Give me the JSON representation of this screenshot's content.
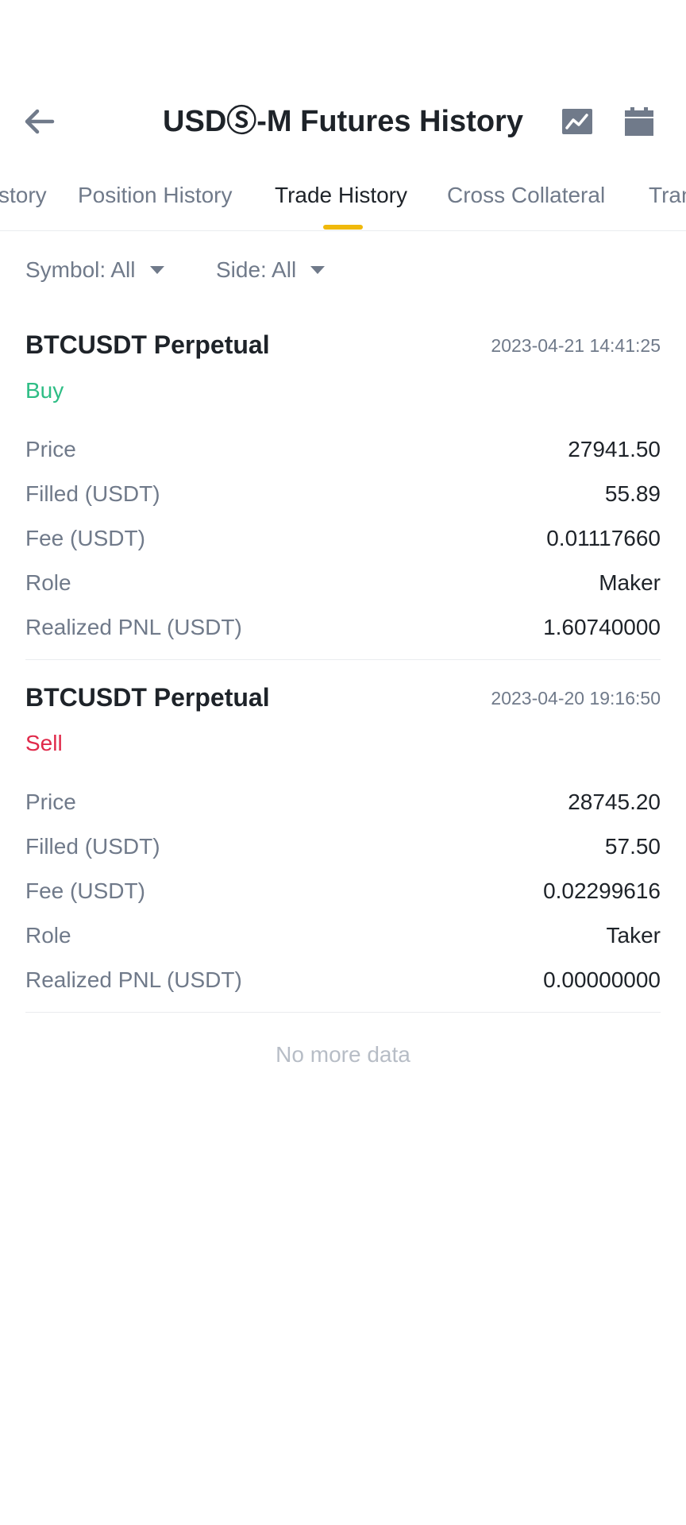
{
  "header": {
    "title": "USDⓈ-M Futures History",
    "back_icon": "arrow-left-icon",
    "chart_icon": "chart-icon",
    "calendar_icon": "calendar-icon"
  },
  "tabs": [
    {
      "label": "story"
    },
    {
      "label": "Position History"
    },
    {
      "label": "Trade History",
      "active": true
    },
    {
      "label": "Cross Collateral"
    },
    {
      "label": "Tran"
    }
  ],
  "filters": {
    "symbol": "Symbol: All",
    "side": "Side: All"
  },
  "colors": {
    "accent": "#f0b90b",
    "buy": "#2ebd85",
    "sell": "#e0294a",
    "text": "#1e2329",
    "muted": "#707a8a"
  },
  "trades": [
    {
      "symbol": "BTCUSDT Perpetual",
      "time": "2023-04-21 14:41:25",
      "side": "Buy",
      "rows": [
        {
          "label": "Price",
          "value": "27941.50"
        },
        {
          "label": "Filled (USDT)",
          "value": "55.89"
        },
        {
          "label": "Fee (USDT)",
          "value": "0.01117660"
        },
        {
          "label": "Role",
          "value": "Maker"
        },
        {
          "label": "Realized PNL (USDT)",
          "value": "1.60740000"
        }
      ]
    },
    {
      "symbol": "BTCUSDT Perpetual",
      "time": "2023-04-20 19:16:50",
      "side": "Sell",
      "rows": [
        {
          "label": "Price",
          "value": "28745.20"
        },
        {
          "label": "Filled (USDT)",
          "value": "57.50"
        },
        {
          "label": "Fee (USDT)",
          "value": "0.02299616"
        },
        {
          "label": "Role",
          "value": "Taker"
        },
        {
          "label": "Realized PNL (USDT)",
          "value": "0.00000000"
        }
      ]
    }
  ],
  "footer": {
    "no_more": "No more data"
  }
}
